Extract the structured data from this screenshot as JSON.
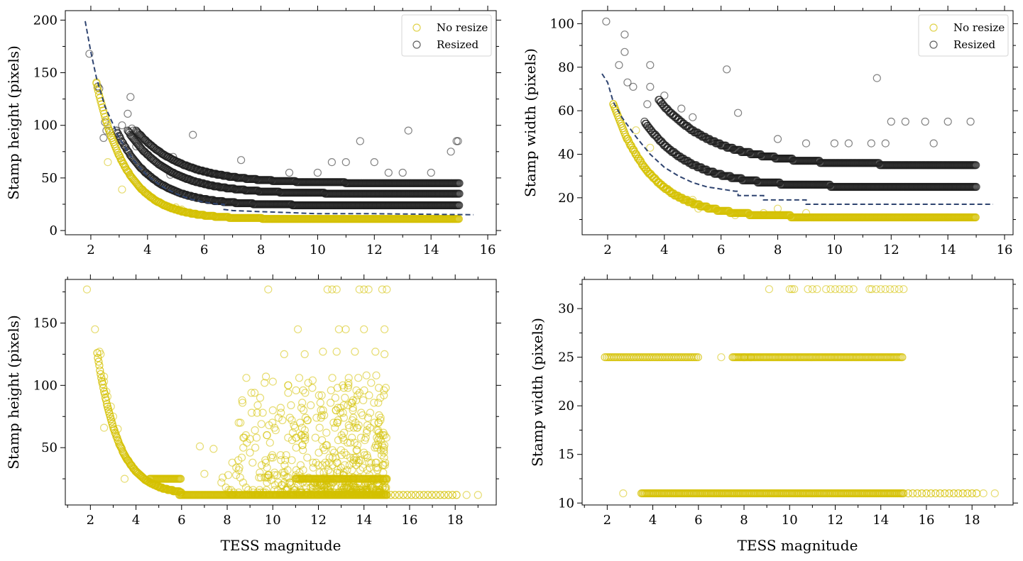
{
  "figure": {
    "xlabel_shared": "TESS magnitude"
  },
  "colors": {
    "no_resize": "#d4c100",
    "resized": "#1e1e1e",
    "fit_line": "#2f4470",
    "axis": "#000000"
  },
  "chart_data": [
    {
      "id": "top-left",
      "type": "scatter",
      "title": "",
      "xlabel": "",
      "ylabel": "Stamp height (pixels)",
      "xlim": [
        1.1,
        16.3
      ],
      "ylim": [
        -4,
        209
      ],
      "xticks": [
        2,
        4,
        6,
        8,
        10,
        12,
        14,
        16
      ],
      "yticks": [
        0,
        50,
        100,
        150,
        200
      ],
      "legend": {
        "position": "top-right",
        "entries": [
          "No resize",
          "Resized"
        ]
      },
      "series": [
        {
          "name": "Resized",
          "kind": "level",
          "x0": 2.9,
          "x1": 15.0,
          "y0": 95,
          "floor": 24,
          "decay": 1.25
        },
        {
          "name": "Resized",
          "kind": "level",
          "x0": 3.3,
          "x1": 15.0,
          "y0": 95,
          "floor": 35,
          "decay": 1.45
        },
        {
          "name": "Resized",
          "kind": "level",
          "x0": 3.6,
          "x1": 15.0,
          "y0": 95,
          "floor": 45,
          "decay": 1.6
        },
        {
          "name": "Resized",
          "kind": "scatter",
          "points": [
            [
              1.95,
              168
            ],
            [
              2.25,
              137
            ],
            [
              2.3,
              135
            ],
            [
              2.45,
              88
            ],
            [
              2.5,
              103
            ],
            [
              2.55,
              95
            ],
            [
              2.65,
              95
            ],
            [
              3.1,
              100
            ],
            [
              3.3,
              111
            ],
            [
              3.4,
              127
            ],
            [
              3.45,
              97
            ],
            [
              3.5,
              95
            ],
            [
              3.6,
              80
            ],
            [
              4.8,
              53
            ],
            [
              4.9,
              70
            ],
            [
              5.6,
              91
            ],
            [
              7.3,
              67
            ],
            [
              11.5,
              85
            ],
            [
              13.2,
              95
            ],
            [
              14.7,
              75
            ],
            [
              14.9,
              85
            ],
            [
              14.95,
              85
            ],
            [
              9.0,
              55
            ],
            [
              10.0,
              55
            ],
            [
              10.5,
              65
            ],
            [
              11.0,
              65
            ],
            [
              12.0,
              65
            ],
            [
              12.5,
              55
            ],
            [
              13.0,
              55
            ],
            [
              14.0,
              55
            ]
          ]
        },
        {
          "name": "No resize",
          "kind": "level",
          "x0": 2.2,
          "x1": 15.0,
          "y0": 140,
          "floor": 11,
          "decay": 1.05
        },
        {
          "name": "No resize",
          "kind": "scatter",
          "points": [
            [
              2.2,
              141
            ],
            [
              2.6,
              65
            ],
            [
              3.1,
              39
            ],
            [
              3.7,
              42
            ],
            [
              5.0,
              22
            ],
            [
              5.2,
              20
            ],
            [
              5.6,
              16
            ]
          ]
        },
        {
          "name": "Fit",
          "kind": "line",
          "points": [
            [
              1.8,
              199
            ],
            [
              2.0,
              170
            ],
            [
              2.2,
              145
            ],
            [
              2.5,
              118
            ],
            [
              3.0,
              88
            ],
            [
              3.5,
              67
            ],
            [
              4.0,
              52
            ],
            [
              4.5,
              42
            ],
            [
              5.0,
              35
            ],
            [
              5.5,
              30
            ],
            [
              6.0,
              27
            ],
            [
              6.5,
              25
            ],
            [
              6.7,
              25
            ],
            [
              6.7,
              20
            ],
            [
              7.0,
              19
            ],
            [
              8.0,
              18
            ],
            [
              9.0,
              17
            ],
            [
              10.0,
              16
            ],
            [
              12.0,
              16
            ],
            [
              15.5,
              15
            ]
          ]
        }
      ]
    },
    {
      "id": "top-right",
      "type": "scatter",
      "title": "",
      "xlabel": "",
      "ylabel": "Stamp width (pixels)",
      "xlim": [
        1.1,
        16.3
      ],
      "ylim": [
        3,
        106
      ],
      "xticks": [
        2,
        4,
        6,
        8,
        10,
        12,
        14,
        16
      ],
      "yticks": [
        20,
        40,
        60,
        80,
        100
      ],
      "legend": {
        "position": "top-right",
        "entries": [
          "No resize",
          "Resized"
        ]
      },
      "series": [
        {
          "name": "Resized",
          "kind": "level",
          "x0": 3.3,
          "x1": 15.0,
          "y0": 55,
          "floor": 25,
          "decay": 1.6
        },
        {
          "name": "Resized",
          "kind": "level",
          "x0": 3.8,
          "x1": 15.0,
          "y0": 65,
          "floor": 35,
          "decay": 1.9
        },
        {
          "name": "Resized",
          "kind": "scatter",
          "points": [
            [
              1.95,
              101
            ],
            [
              2.4,
              81
            ],
            [
              2.6,
              87
            ],
            [
              2.6,
              95
            ],
            [
              2.7,
              73
            ],
            [
              2.9,
              71
            ],
            [
              3.4,
              63
            ],
            [
              3.5,
              81
            ],
            [
              3.5,
              71
            ],
            [
              4.0,
              67
            ],
            [
              4.6,
              61
            ],
            [
              5.0,
              57
            ],
            [
              6.2,
              79
            ],
            [
              6.6,
              59
            ],
            [
              11.5,
              75
            ],
            [
              12.0,
              55
            ],
            [
              12.5,
              55
            ],
            [
              13.2,
              55
            ],
            [
              14.0,
              55
            ],
            [
              14.8,
              55
            ],
            [
              8.0,
              47
            ],
            [
              9.0,
              45
            ],
            [
              10.0,
              45
            ],
            [
              10.5,
              45
            ],
            [
              11.3,
              45
            ],
            [
              11.8,
              45
            ],
            [
              13.5,
              45
            ]
          ]
        },
        {
          "name": "No resize",
          "kind": "level",
          "x0": 2.2,
          "x1": 15.0,
          "y0": 63,
          "floor": 11,
          "decay": 1.35
        },
        {
          "name": "No resize",
          "kind": "scatter",
          "points": [
            [
              2.2,
              63
            ],
            [
              3.0,
              51
            ],
            [
              3.5,
              43
            ],
            [
              5.0,
              19
            ],
            [
              5.2,
              15
            ],
            [
              6.5,
              12
            ],
            [
              7.5,
              13
            ],
            [
              8.0,
              15
            ],
            [
              9.0,
              13
            ]
          ]
        },
        {
          "name": "Fit",
          "kind": "line",
          "points": [
            [
              1.8,
              77
            ],
            [
              2.0,
              73
            ],
            [
              2.2,
              64
            ],
            [
              2.5,
              57
            ],
            [
              3.0,
              48
            ],
            [
              3.5,
              40
            ],
            [
              4.0,
              34
            ],
            [
              4.5,
              30
            ],
            [
              5.0,
              27
            ],
            [
              5.5,
              25
            ],
            [
              6.0,
              24
            ],
            [
              6.5,
              23
            ],
            [
              6.6,
              23
            ],
            [
              6.6,
              21
            ],
            [
              7.5,
              21
            ],
            [
              7.5,
              19
            ],
            [
              9.0,
              19
            ],
            [
              9.0,
              17
            ],
            [
              12.0,
              17
            ],
            [
              15.6,
              17
            ]
          ]
        }
      ]
    },
    {
      "id": "bottom-left",
      "type": "scatter",
      "title": "",
      "xlabel": "TESS magnitude",
      "ylabel": "Stamp height (pixels)",
      "xlim": [
        0.9,
        19.8
      ],
      "ylim": [
        4,
        185
      ],
      "xticks": [
        2,
        4,
        6,
        8,
        10,
        12,
        14,
        16,
        18
      ],
      "yticks": [
        50,
        100,
        150
      ],
      "legend": null,
      "series": [
        {
          "name": "No resize",
          "kind": "level",
          "x0": 2.3,
          "x1": 6.0,
          "y0": 126,
          "floor": 12,
          "decay": 0.95
        },
        {
          "name": "No resize",
          "kind": "flat",
          "x0": 5.9,
          "x1": 15.0,
          "y": 12
        },
        {
          "name": "No resize",
          "kind": "flat",
          "x0": 15.0,
          "x1": 18.2,
          "y": 12,
          "spacing": 0.18
        },
        {
          "name": "No resize",
          "kind": "flat",
          "x0": 4.6,
          "x1": 6.0,
          "y": 25
        },
        {
          "name": "No resize",
          "kind": "cloud",
          "x0": 7.5,
          "x1": 15.0,
          "ymin": 12,
          "ymax": 108,
          "count": 700,
          "bias": 3.0
        },
        {
          "name": "No resize",
          "kind": "flat",
          "x0": 11.0,
          "x1": 15.0,
          "y": 25
        },
        {
          "name": "No resize",
          "kind": "scatter",
          "points": [
            [
              1.85,
              177
            ],
            [
              2.2,
              145
            ],
            [
              2.4,
              127
            ],
            [
              2.45,
              125
            ],
            [
              2.6,
              107
            ],
            [
              2.6,
              103
            ],
            [
              2.7,
              95
            ],
            [
              2.75,
              91
            ],
            [
              2.9,
              83
            ],
            [
              3.0,
              75
            ],
            [
              3.2,
              65
            ],
            [
              3.5,
              25
            ],
            [
              2.6,
              66
            ],
            [
              9.8,
              177
            ],
            [
              12.4,
              177
            ],
            [
              12.6,
              177
            ],
            [
              12.8,
              177
            ],
            [
              13.8,
              177
            ],
            [
              14.0,
              177
            ],
            [
              14.2,
              177
            ],
            [
              14.8,
              177
            ],
            [
              15.0,
              177
            ],
            [
              11.1,
              145
            ],
            [
              12.9,
              145
            ],
            [
              13.2,
              145
            ],
            [
              14.0,
              145
            ],
            [
              14.9,
              145
            ],
            [
              10.5,
              125
            ],
            [
              11.4,
              125
            ],
            [
              12.2,
              127
            ],
            [
              12.8,
              127
            ],
            [
              13.6,
              127
            ],
            [
              14.5,
              127
            ],
            [
              14.9,
              125
            ],
            [
              6.8,
              51
            ],
            [
              7.4,
              49
            ],
            [
              7.0,
              29
            ],
            [
              9.0,
              57
            ],
            [
              9.2,
              94
            ],
            [
              9.7,
              107
            ],
            [
              10.0,
              103
            ],
            [
              9.5,
              69
            ],
            [
              18.5,
              12
            ],
            [
              19.0,
              12
            ]
          ]
        }
      ]
    },
    {
      "id": "bottom-right",
      "type": "scatter",
      "title": "",
      "xlabel": "TESS magnitude",
      "ylabel": "Stamp width (pixels)",
      "xlim": [
        0.9,
        19.8
      ],
      "ylim": [
        9.8,
        33
      ],
      "xticks": [
        2,
        4,
        6,
        8,
        10,
        12,
        14,
        16,
        18
      ],
      "yticks": [
        10,
        15,
        20,
        25,
        30
      ],
      "legend": null,
      "series": [
        {
          "name": "No resize",
          "kind": "flat",
          "x0": 1.9,
          "x1": 6.0,
          "y": 25,
          "spacing": 0.08
        },
        {
          "name": "No resize",
          "kind": "flat",
          "x0": 7.5,
          "x1": 15.0,
          "y": 25,
          "spacing": 0.06
        },
        {
          "name": "No resize",
          "kind": "flat",
          "x0": 3.5,
          "x1": 15.0,
          "y": 11,
          "spacing": 0.05
        },
        {
          "name": "No resize",
          "kind": "flat",
          "x0": 15.0,
          "x1": 18.2,
          "y": 11,
          "spacing": 0.2
        },
        {
          "name": "No resize",
          "kind": "scatter",
          "points": [
            [
              2.7,
              11
            ],
            [
              18.5,
              11
            ],
            [
              19.0,
              11
            ],
            [
              9.1,
              32
            ],
            [
              10.0,
              32
            ],
            [
              10.1,
              32
            ],
            [
              10.2,
              32
            ],
            [
              10.8,
              32
            ],
            [
              11.0,
              32
            ],
            [
              11.2,
              32
            ],
            [
              11.6,
              32
            ],
            [
              11.8,
              32
            ],
            [
              12.0,
              32
            ],
            [
              12.2,
              32
            ],
            [
              12.4,
              32
            ],
            [
              12.6,
              32
            ],
            [
              12.8,
              32
            ],
            [
              13.5,
              32
            ],
            [
              13.6,
              32
            ],
            [
              13.8,
              32
            ],
            [
              14.0,
              32
            ],
            [
              14.2,
              32
            ],
            [
              14.4,
              32
            ],
            [
              14.6,
              32
            ],
            [
              14.8,
              32
            ],
            [
              15.0,
              32
            ],
            [
              7.0,
              25
            ],
            [
              8.0,
              25
            ],
            [
              8.3,
              25
            ]
          ]
        }
      ]
    }
  ]
}
